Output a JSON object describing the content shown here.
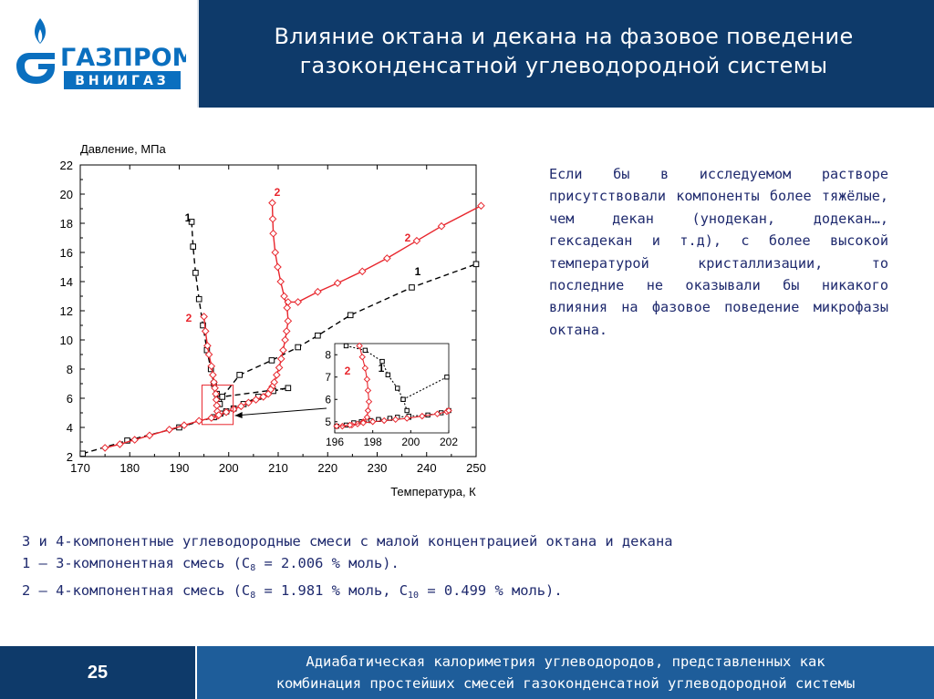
{
  "header": {
    "logo_word": "ГАЗПРОМ",
    "logo_sub": "ВНИИГАЗ",
    "title_line1": "Влияние октана и декана на фазовое поведение",
    "title_line2": "газоконденсатной углеводородной системы"
  },
  "chart_data": {
    "type": "line",
    "ylabel": "Давление, МПа",
    "xlabel": "Температура, К",
    "xlim": [
      170,
      250
    ],
    "ylim": [
      2,
      22
    ],
    "x_ticks": [
      "170",
      "180",
      "190",
      "200",
      "210",
      "220",
      "230",
      "240",
      "250"
    ],
    "y_ticks": [
      "2",
      "4",
      "6",
      "8",
      "10",
      "12",
      "14",
      "16",
      "18",
      "20",
      "22"
    ],
    "series": [
      {
        "name": "1",
        "color": "#000000",
        "style": "dashed",
        "marker": "square",
        "branches": [
          [
            [
              192.5,
              18.1
            ],
            [
              192.8,
              16.4
            ],
            [
              193.3,
              14.6
            ],
            [
              194.0,
              12.8
            ],
            [
              194.8,
              11.0
            ],
            [
              195.6,
              9.3
            ],
            [
              196.4,
              8.0
            ],
            [
              197.0,
              7.0
            ],
            [
              197.6,
              6.3
            ],
            [
              198.0,
              5.8
            ],
            [
              198.2,
              5.6
            ]
          ],
          [
            [
              170.5,
              2.2
            ],
            [
              179.5,
              3.1
            ],
            [
              190.0,
              4.0
            ],
            [
              197.0,
              4.7
            ],
            [
              198.3,
              4.95
            ],
            [
              199.5,
              5.1
            ],
            [
              201.0,
              5.3
            ],
            [
              203.0,
              5.6
            ],
            [
              206.0,
              6.1
            ],
            [
              209.0,
              6.5
            ],
            [
              212.0,
              6.7
            ],
            [
              198.7,
              6.1
            ],
            [
              202.2,
              7.6
            ],
            [
              208.7,
              8.6
            ],
            [
              214.0,
              9.5
            ],
            [
              218.0,
              10.3
            ],
            [
              224.6,
              11.7
            ],
            [
              237.0,
              13.6
            ],
            [
              250.0,
              15.2
            ]
          ]
        ]
      },
      {
        "name": "2",
        "color": "#e8262d",
        "style": "solid",
        "marker": "diamond",
        "branches": [
          [
            [
              195.0,
              11.6
            ],
            [
              195.3,
              10.6
            ],
            [
              195.7,
              9.6
            ],
            [
              196.0,
              9.0
            ],
            [
              196.5,
              8.2
            ],
            [
              196.8,
              7.6
            ],
            [
              197.0,
              7.1
            ],
            [
              197.2,
              6.7
            ],
            [
              197.4,
              6.3
            ],
            [
              197.5,
              5.9
            ],
            [
              197.6,
              5.5
            ],
            [
              197.7,
              5.1
            ],
            [
              197.8,
              4.8
            ]
          ],
          [
            [
              208.8,
              19.4
            ],
            [
              208.9,
              18.3
            ],
            [
              209.0,
              17.3
            ],
            [
              209.4,
              16.0
            ],
            [
              209.9,
              15.0
            ],
            [
              210.5,
              14.0
            ],
            [
              211.2,
              13.0
            ],
            [
              211.8,
              12.2
            ],
            [
              212.0,
              11.3
            ],
            [
              211.7,
              10.6
            ],
            [
              211.4,
              10.0
            ],
            [
              211.0,
              9.3
            ],
            [
              210.6,
              8.7
            ],
            [
              210.2,
              8.1
            ],
            [
              209.7,
              7.6
            ],
            [
              209.2,
              7.1
            ],
            [
              208.8,
              6.8
            ],
            [
              208.5,
              6.6
            ]
          ],
          [
            [
              175.0,
              2.6
            ],
            [
              178.0,
              2.85
            ],
            [
              181.0,
              3.15
            ],
            [
              184.0,
              3.45
            ],
            [
              188.0,
              3.85
            ],
            [
              191.0,
              4.15
            ],
            [
              194.0,
              4.45
            ],
            [
              196.5,
              4.65
            ],
            [
              198.0,
              4.85
            ],
            [
              199.5,
              5.05
            ],
            [
              201.0,
              5.25
            ],
            [
              202.5,
              5.45
            ],
            [
              204.0,
              5.7
            ],
            [
              205.5,
              5.9
            ],
            [
              207.0,
              6.1
            ],
            [
              208.0,
              6.3
            ],
            [
              208.5,
              6.6
            ]
          ],
          [
            [
              212.0,
              12.6
            ],
            [
              214.0,
              12.6
            ],
            [
              218.0,
              13.3
            ],
            [
              222.0,
              13.9
            ],
            [
              227.0,
              14.7
            ],
            [
              232.0,
              15.6
            ],
            [
              238.0,
              16.8
            ],
            [
              243.0,
              17.8
            ],
            [
              251.0,
              19.2
            ]
          ]
        ]
      }
    ],
    "annotations": [
      "1",
      "2",
      "2",
      "1",
      "2"
    ],
    "inset": {
      "xlim": [
        196,
        202
      ],
      "ylim": [
        4.5,
        8.5
      ],
      "x_ticks": [
        "196",
        "198",
        "200",
        "202"
      ],
      "y_ticks": [
        "5",
        "6",
        "7",
        "8"
      ],
      "labels": [
        "2",
        "1"
      ],
      "series": [
        {
          "name": "1",
          "marker": "square",
          "color": "#000000",
          "style": "dotted",
          "branches": [
            [
              [
                196.6,
                8.4
              ],
              [
                197.6,
                8.2
              ],
              [
                198.5,
                7.7
              ],
              [
                198.8,
                7.1
              ],
              [
                199.3,
                6.5
              ],
              [
                199.6,
                6.0
              ],
              [
                199.8,
                5.5
              ],
              [
                199.9,
                5.2
              ]
            ],
            [
              [
                196.1,
                4.8
              ],
              [
                196.6,
                4.85
              ],
              [
                197.0,
                4.95
              ],
              [
                197.4,
                5.0
              ],
              [
                197.9,
                5.05
              ],
              [
                198.3,
                5.1
              ],
              [
                198.9,
                5.15
              ],
              [
                199.3,
                5.2
              ],
              [
                199.9,
                5.25
              ],
              [
                200.9,
                5.3
              ],
              [
                201.6,
                5.4
              ],
              [
                202.0,
                5.5
              ]
            ],
            [
              [
                199.6,
                6.0
              ],
              [
                201.9,
                7.0
              ]
            ]
          ]
        },
        {
          "name": "2",
          "marker": "diamond",
          "color": "#e8262d",
          "style": "solid",
          "branches": [
            [
              [
                197.3,
                8.4
              ],
              [
                197.45,
                7.9
              ],
              [
                197.6,
                7.4
              ],
              [
                197.7,
                6.9
              ],
              [
                197.75,
                6.4
              ],
              [
                197.8,
                5.9
              ],
              [
                197.75,
                5.5
              ],
              [
                197.7,
                5.2
              ],
              [
                197.5,
                5.0
              ],
              [
                197.2,
                4.9
              ],
              [
                196.9,
                4.85
              ],
              [
                196.4,
                4.8
              ]
            ],
            [
              [
                196.1,
                4.8
              ],
              [
                196.8,
                4.85
              ],
              [
                197.5,
                4.95
              ],
              [
                198.0,
                5.0
              ],
              [
                198.6,
                5.05
              ],
              [
                199.2,
                5.1
              ],
              [
                199.8,
                5.15
              ],
              [
                200.6,
                5.25
              ],
              [
                201.4,
                5.35
              ],
              [
                201.9,
                5.45
              ],
              [
                202.0,
                5.5
              ]
            ]
          ]
        }
      ]
    }
  },
  "paragraph": "Если бы в исследуемом растворе присутствовали компоненты более тяжёлые, чем декан (унодекан, додекан…, гексадекан и т.д), с более высокой температурой кристаллизации, то последние не оказывали бы никакого влияния на фазовое поведение микрофазы октана.",
  "captions": {
    "line1": "3 и 4-компонентные углеводородные смеси с малой концентрацией октана и декана",
    "line2_prefix": "1 – 3-компонентная смесь (C",
    "line2_sub": "8",
    "line2_suffix": " = 2.006 % моль).",
    "line3_prefix": "2 – 4-компонентная смесь (C",
    "line3_sub1": "8",
    "line3_mid": " = 1.981 % моль, C",
    "line3_sub2": "10",
    "line3_suffix": " = 0.499 % моль)."
  },
  "footer": {
    "page_number": "25",
    "line1": "Адиабатическая калориметрия углеводородов, представленных как",
    "line2": "комбинация простейших смесей газоконденсатной углеводородной системы"
  },
  "colors": {
    "header_blue": "#0e3a6a",
    "footer_blue": "#1e5d9a",
    "logo_blue": "#0a6fbf",
    "text_navy": "#1f2a6e",
    "series_red": "#e8262d"
  }
}
